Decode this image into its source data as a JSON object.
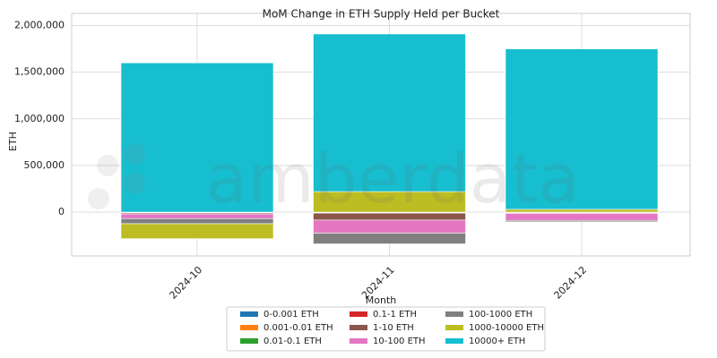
{
  "chart_data": {
    "type": "stacked-bar",
    "title": "MoM Change in ETH Supply Held per Bucket",
    "watermark": "amberdata",
    "x_label": "Month",
    "y_label": "ETH",
    "categories": [
      "2024-10",
      "2024-11",
      "2024-12"
    ],
    "series": [
      {
        "name": "0-0.001 ETH",
        "color": "#1f77b4",
        "values": [
          -500,
          -800,
          -300
        ]
      },
      {
        "name": "0.001-0.01 ETH",
        "color": "#ff7f0e",
        "values": [
          -1000,
          -1500,
          -800
        ]
      },
      {
        "name": "0.01-0.1 ETH",
        "color": "#2ca02c",
        "values": [
          -2000,
          -3000,
          -1500
        ]
      },
      {
        "name": "0.1-1 ETH",
        "color": "#d62728",
        "values": [
          -4000,
          -5000,
          -3000
        ]
      },
      {
        "name": "1-10 ETH",
        "color": "#8c564b",
        "values": [
          -12000,
          -75000,
          -8000
        ]
      },
      {
        "name": "10-100 ETH",
        "color": "#e377c2",
        "values": [
          -50000,
          -140000,
          -75000
        ]
      },
      {
        "name": "100-1000 ETH",
        "color": "#7f7f7f",
        "values": [
          -55000,
          -115000,
          -15000
        ]
      },
      {
        "name": "1000-10000 ETH",
        "color": "#bcbd22",
        "values": [
          -160000,
          220000,
          30000
        ]
      },
      {
        "name": "10000+ ETH",
        "color": "#17becf",
        "values": [
          1600000,
          1690000,
          1720000
        ]
      }
    ],
    "ylim": [
      -470000,
      2130000
    ],
    "yticks": [
      0,
      {
        "value": 500000,
        "label": "500,000"
      },
      {
        "value": 1000000,
        "label": "1,000,000"
      },
      {
        "value": 1500000,
        "label": "1,500,000"
      },
      {
        "value": 2000000,
        "label": "2,000,000"
      }
    ],
    "grid": true,
    "legend_position": "bottom"
  }
}
